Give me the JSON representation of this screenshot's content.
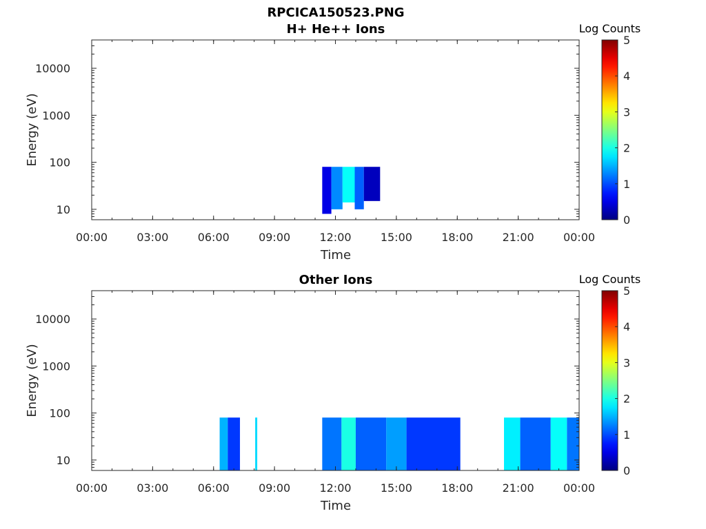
{
  "figure": {
    "title": "RPCICA150523.PNG"
  },
  "chart_data": [
    {
      "type": "heatmap",
      "title": "H+ He++ Ions",
      "xlabel": "Time",
      "ylabel": "Energy (eV)",
      "x_tick_labels": [
        "00:00",
        "03:00",
        "06:00",
        "09:00",
        "12:00",
        "15:00",
        "18:00",
        "21:00",
        "00:00"
      ],
      "y_tick_labels": [
        "10",
        "100",
        "1000",
        "10000"
      ],
      "y_scale": "log",
      "x_range_hours": [
        0,
        24
      ],
      "y_range_ev": [
        6,
        40000
      ],
      "colorbar": {
        "label": "Log Counts",
        "ticks": [
          "0",
          "1",
          "2",
          "3",
          "4",
          "5"
        ],
        "range": [
          0,
          5
        ],
        "colormap": "jet"
      },
      "blocks": [
        {
          "t_start": 11.35,
          "t_end": 11.8,
          "e_min": 8,
          "e_max": 80,
          "level": 0.5
        },
        {
          "t_start": 11.8,
          "t_end": 12.35,
          "e_min": 10,
          "e_max": 80,
          "level": 1.3
        },
        {
          "t_start": 12.35,
          "t_end": 12.95,
          "e_min": 14,
          "e_max": 80,
          "level": 1.9
        },
        {
          "t_start": 12.95,
          "t_end": 13.4,
          "e_min": 10,
          "e_max": 80,
          "level": 1.1
        },
        {
          "t_start": 13.4,
          "t_end": 14.2,
          "e_min": 15,
          "e_max": 80,
          "level": 0.3
        }
      ]
    },
    {
      "type": "heatmap",
      "title": "Other Ions",
      "xlabel": "Time",
      "ylabel": "Energy (eV)",
      "x_tick_labels": [
        "00:00",
        "03:00",
        "06:00",
        "09:00",
        "12:00",
        "15:00",
        "18:00",
        "21:00",
        "00:00"
      ],
      "y_tick_labels": [
        "10",
        "100",
        "1000",
        "10000"
      ],
      "y_scale": "log",
      "x_range_hours": [
        0,
        24
      ],
      "y_range_ev": [
        6,
        40000
      ],
      "colorbar": {
        "label": "Log Counts",
        "ticks": [
          "0",
          "1",
          "2",
          "3",
          "4",
          "5"
        ],
        "range": [
          0,
          5
        ],
        "colormap": "jet"
      },
      "blocks": [
        {
          "t_start": 6.3,
          "t_end": 6.7,
          "e_min": 6,
          "e_max": 80,
          "level": 1.5
        },
        {
          "t_start": 6.7,
          "t_end": 7.3,
          "e_min": 6,
          "e_max": 80,
          "level": 0.9
        },
        {
          "t_start": 8.05,
          "t_end": 8.15,
          "e_min": 6,
          "e_max": 80,
          "level": 1.7
        },
        {
          "t_start": 11.35,
          "t_end": 12.3,
          "e_min": 6,
          "e_max": 80,
          "level": 1.2
        },
        {
          "t_start": 12.3,
          "t_end": 13.0,
          "e_min": 6,
          "e_max": 80,
          "level": 2.0
        },
        {
          "t_start": 13.0,
          "t_end": 14.5,
          "e_min": 6,
          "e_max": 80,
          "level": 1.1
        },
        {
          "t_start": 14.5,
          "t_end": 15.5,
          "e_min": 6,
          "e_max": 80,
          "level": 1.4
        },
        {
          "t_start": 15.5,
          "t_end": 18.15,
          "e_min": 6,
          "e_max": 80,
          "level": 0.9
        },
        {
          "t_start": 20.3,
          "t_end": 21.1,
          "e_min": 6,
          "e_max": 80,
          "level": 1.8
        },
        {
          "t_start": 21.1,
          "t_end": 22.6,
          "e_min": 6,
          "e_max": 80,
          "level": 1.1
        },
        {
          "t_start": 22.6,
          "t_end": 23.4,
          "e_min": 6,
          "e_max": 80,
          "level": 1.9
        },
        {
          "t_start": 23.4,
          "t_end": 24.0,
          "e_min": 6,
          "e_max": 80,
          "level": 1.2
        }
      ]
    }
  ]
}
